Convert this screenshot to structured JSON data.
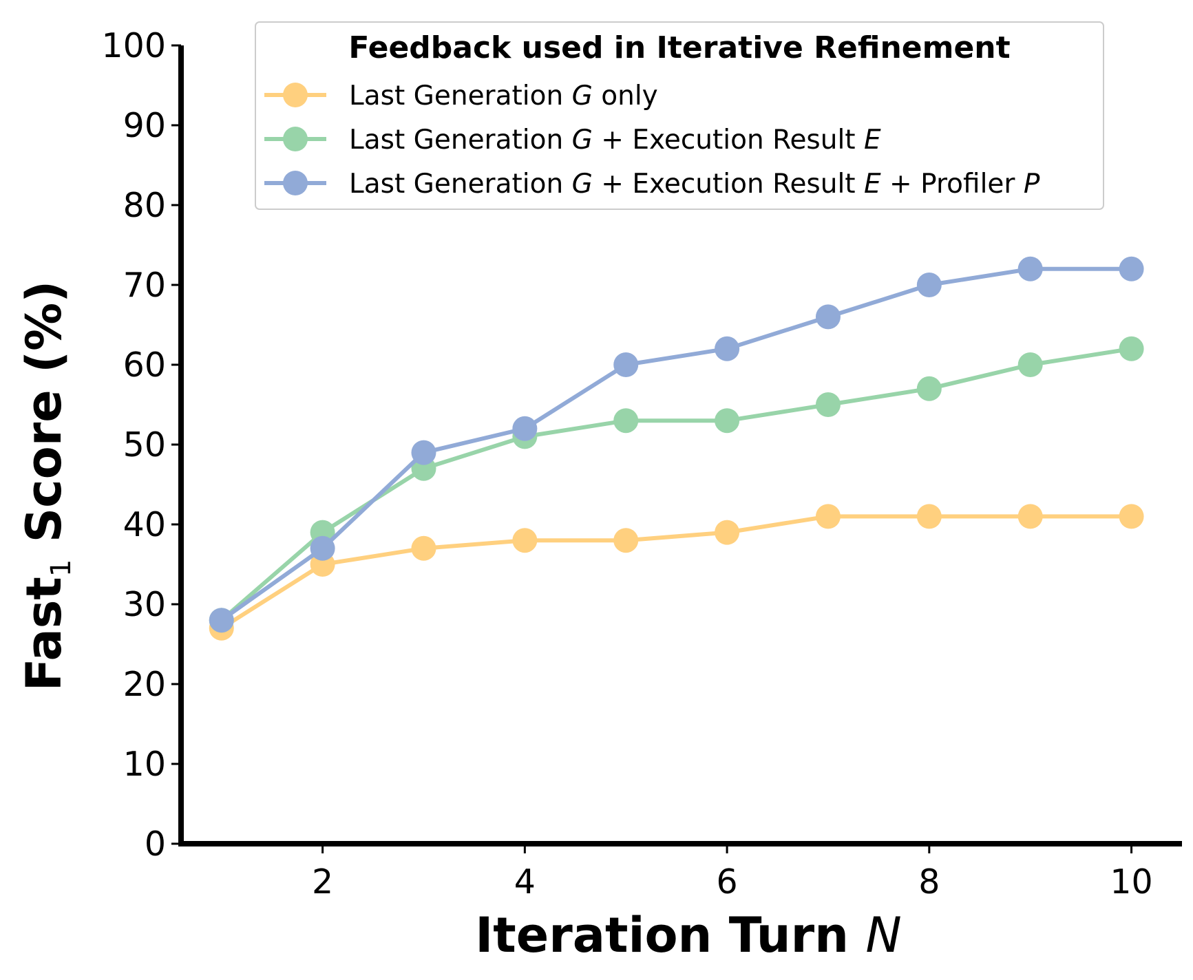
{
  "chart_data": {
    "type": "line",
    "x": [
      1,
      2,
      3,
      4,
      5,
      6,
      7,
      8,
      9,
      10
    ],
    "xlabel": "Iteration Turn",
    "xlabel_var": "N",
    "ylabel_prefix": "Fast",
    "ylabel_sub": "1",
    "ylabel_suffix": "Score (%)",
    "ylim": [
      0,
      100
    ],
    "xlim": [
      0.6,
      10.5
    ],
    "yticks": [
      0,
      10,
      20,
      30,
      40,
      50,
      60,
      70,
      80,
      90,
      100
    ],
    "xticks": [
      2,
      4,
      6,
      8,
      10
    ],
    "grid": false,
    "legend": {
      "title": "Feedback used in Iterative Refinement",
      "placement": "top-right"
    },
    "series": [
      {
        "name": "Last Generation G only",
        "label_parts": [
          {
            "text": "Last Generation ",
            "italic": false
          },
          {
            "text": "G",
            "italic": true
          },
          {
            "text": " only",
            "italic": false
          }
        ],
        "color": "#FFD07F",
        "values": [
          27,
          35,
          37,
          38,
          38,
          39,
          41,
          41,
          41,
          41
        ]
      },
      {
        "name": "Last Generation G + Execution Result E",
        "label_parts": [
          {
            "text": "Last Generation ",
            "italic": false
          },
          {
            "text": "G",
            "italic": true
          },
          {
            "text": " + Execution Result ",
            "italic": false
          },
          {
            "text": "E",
            "italic": true
          }
        ],
        "color": "#98D4A9",
        "values": [
          28,
          39,
          47,
          51,
          53,
          53,
          55,
          57,
          60,
          62
        ]
      },
      {
        "name": "Last Generation G + Execution Result E + Profiler P",
        "label_parts": [
          {
            "text": "Last Generation ",
            "italic": false
          },
          {
            "text": "G",
            "italic": true
          },
          {
            "text": " + Execution Result ",
            "italic": false
          },
          {
            "text": "E",
            "italic": true
          },
          {
            "text": " + Profiler ",
            "italic": false
          },
          {
            "text": "P",
            "italic": true
          }
        ],
        "color": "#91AAD7",
        "values": [
          28,
          37,
          49,
          52,
          60,
          62,
          66,
          70,
          72,
          72
        ]
      }
    ]
  }
}
